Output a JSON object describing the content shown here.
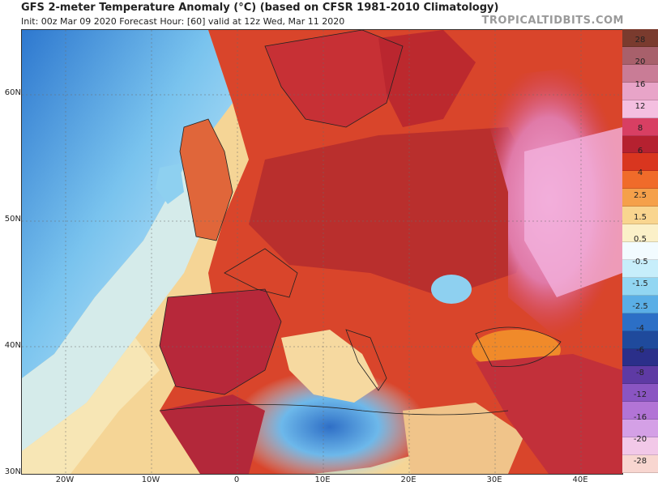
{
  "header": {
    "title": "GFS 2-meter Temperature Anomaly (°C) (based on CFSR 1981-2010 Climatology)",
    "subtitle": "Init: 00z Mar 09 2020   Forecast Hour: [60]   valid at 12z Wed, Mar 11 2020",
    "brand": "TROPICALTIDBITS.COM"
  },
  "map": {
    "lat_labels": [
      "60N",
      "50N",
      "40N",
      "30N"
    ],
    "lon_labels": [
      "20W",
      "10W",
      "0",
      "10E",
      "20E",
      "30E",
      "40E"
    ]
  },
  "colorbar": {
    "labels": [
      "28",
      "20",
      "16",
      "12",
      "8",
      "6",
      "4",
      "2.5",
      "1.5",
      "0.5",
      "-0.5",
      "-1.5",
      "-2.5",
      "-4",
      "-6",
      "-8",
      "-12",
      "-16",
      "-20",
      "-28"
    ],
    "colors": [
      "#7a3b2e",
      "#a8606b",
      "#c97c96",
      "#e8a4c8",
      "#f4bfe0",
      "#d83f63",
      "#b52130",
      "#d9361f",
      "#f06b2a",
      "#f5a04a",
      "#f9d58f",
      "#fbf0c8",
      "#f2fbff",
      "#c7eefb",
      "#92d6f2",
      "#5aaee6",
      "#2c6fc6",
      "#1f4a9c",
      "#2b2f8a",
      "#5e3aa4",
      "#8a55c2",
      "#b274d6",
      "#d4a0e6",
      "#f2c8e8",
      "#f8d6d0"
    ]
  }
}
